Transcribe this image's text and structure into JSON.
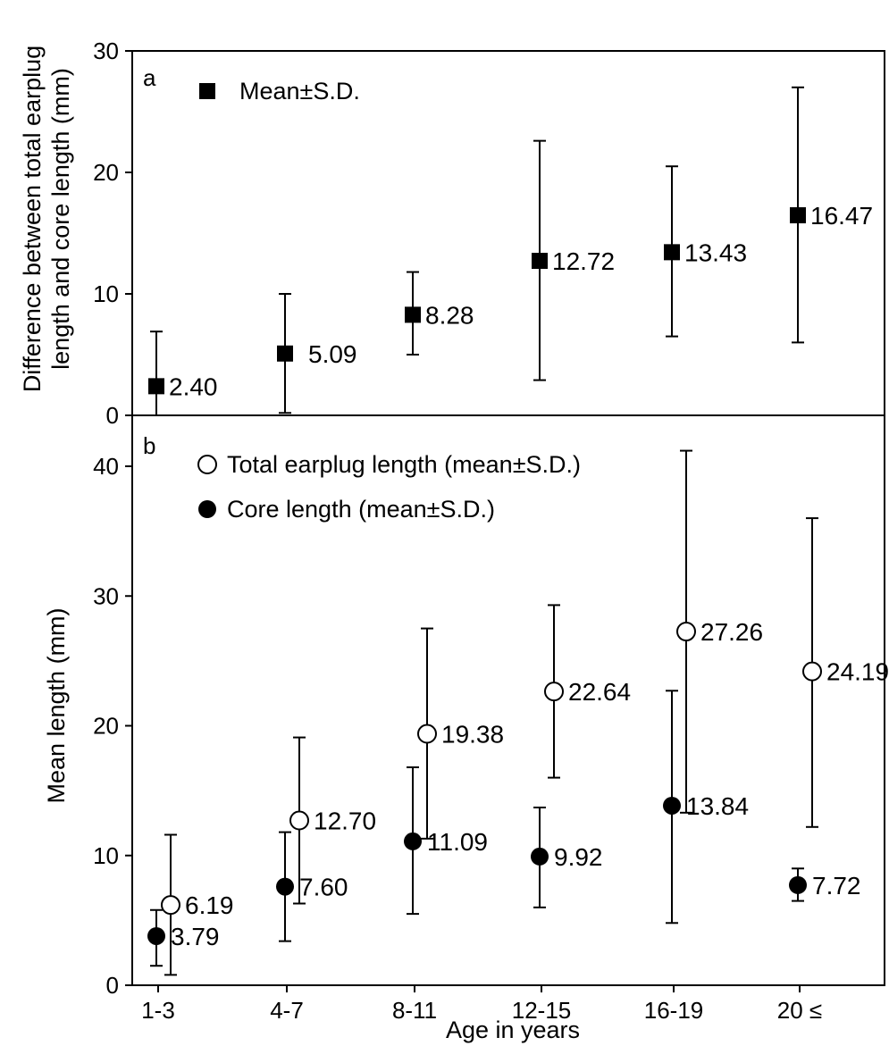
{
  "chart_data": [
    {
      "panel": "a",
      "type": "scatter",
      "ylabel_line1": "Difference between total earplug",
      "ylabel_line2": "length and core length (mm)",
      "ylim": [
        0,
        30
      ],
      "yticks": [
        0,
        10,
        20,
        30
      ],
      "categories": [
        "1-3",
        "4-7",
        "8-11",
        "12-15",
        "16-19",
        "20 ≤"
      ],
      "legend": {
        "placement": "top-left",
        "entries": [
          {
            "label": "Mean±S.D.",
            "marker": "filled-square"
          }
        ]
      },
      "series": [
        {
          "marker": "filled-square",
          "values": [
            2.4,
            5.09,
            8.28,
            12.72,
            13.43,
            16.47
          ],
          "labels": [
            "2.40",
            "5.09",
            "8.28",
            "12.72",
            "13.43",
            "16.47"
          ],
          "err_low": [
            0,
            0.2,
            5,
            2.9,
            6.5,
            6.0
          ],
          "err_high": [
            6.9,
            10.0,
            11.8,
            22.6,
            20.5,
            27.0
          ]
        }
      ]
    },
    {
      "panel": "b",
      "type": "scatter",
      "xlabel": "Age in years",
      "ylabel": "Mean length (mm)",
      "ylim": [
        0,
        42
      ],
      "yticks": [
        0,
        10,
        20,
        30,
        40
      ],
      "categories": [
        "1-3",
        "4-7",
        "8-11",
        "12-15",
        "16-19",
        "20 ≤"
      ],
      "legend": {
        "placement": "top-left",
        "entries": [
          {
            "label": "Total earplug length (mean±S.D.)",
            "marker": "open-circle"
          },
          {
            "label": "Core length (mean±S.D.)",
            "marker": "filled-circle"
          }
        ]
      },
      "series": [
        {
          "name": "Total earplug length (mean±S.D.)",
          "marker": "open-circle",
          "values": [
            6.19,
            12.7,
            19.38,
            22.64,
            27.26,
            24.19
          ],
          "labels": [
            "6.19",
            "12.70",
            "19.38",
            "22.64",
            "27.26",
            "24.19"
          ],
          "err_low": [
            0.8,
            6.3,
            11.3,
            16.0,
            13.3,
            12.2
          ],
          "err_high": [
            11.6,
            19.1,
            27.5,
            29.3,
            41.2,
            36.0
          ]
        },
        {
          "name": "Core length (mean±S.D.)",
          "marker": "filled-circle",
          "values": [
            3.79,
            7.6,
            11.09,
            9.92,
            13.84,
            7.72
          ],
          "labels": [
            "3.79",
            "7.60",
            "11.09",
            "9.92",
            "13.84",
            "7.72"
          ],
          "err_low": [
            1.5,
            3.4,
            5.5,
            6.0,
            4.8,
            6.5
          ],
          "err_high": [
            5.8,
            11.8,
            16.8,
            13.7,
            22.7,
            9.0
          ]
        }
      ]
    }
  ]
}
